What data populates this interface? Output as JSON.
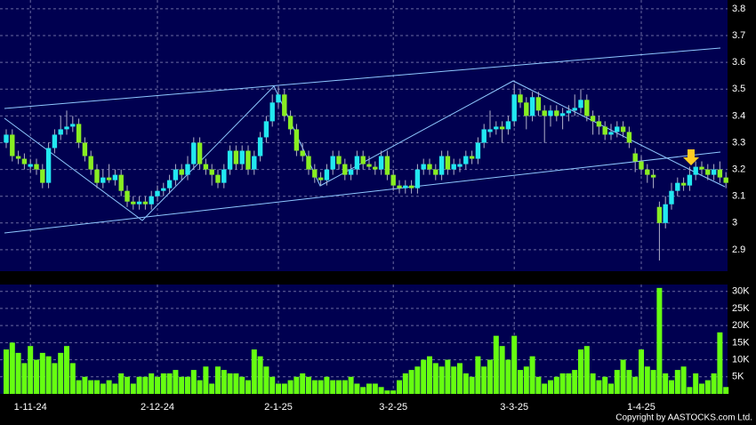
{
  "chart_data": {
    "type": "candlestick",
    "categories": [
      null,
      null,
      null,
      null,
      "1-11-24",
      null,
      null,
      null,
      null,
      null,
      null,
      null,
      null,
      null,
      null,
      null,
      null,
      null,
      null,
      null,
      null,
      null,
      null,
      null,
      null,
      "2-12-24",
      null,
      null,
      null,
      null,
      null,
      null,
      null,
      null,
      null,
      null,
      null,
      null,
      null,
      null,
      null,
      null,
      null,
      null,
      null,
      "2-1-25",
      null,
      null,
      null,
      null,
      null,
      null,
      null,
      null,
      null,
      null,
      null,
      null,
      null,
      null,
      null,
      null,
      null,
      null,
      "3-2-25",
      null,
      null,
      null,
      null,
      null,
      null,
      null,
      null,
      null,
      null,
      null,
      null,
      null,
      null,
      null,
      null,
      null,
      null,
      null,
      "3-3-25",
      null,
      null,
      null,
      null,
      null,
      null,
      null,
      null,
      null,
      null,
      null,
      null,
      null,
      null,
      null,
      null,
      null,
      null,
      null,
      null,
      "1-4-25",
      null,
      null,
      null,
      null,
      null,
      null,
      null,
      null,
      null,
      null,
      null,
      null,
      null,
      null
    ],
    "ohlc": [
      [
        3.3,
        3.35,
        3.28,
        3.33
      ],
      [
        3.33,
        3.35,
        3.23,
        3.25
      ],
      [
        3.25,
        3.27,
        3.22,
        3.24
      ],
      [
        3.24,
        3.26,
        3.2,
        3.22
      ],
      [
        3.21,
        3.24,
        3.19,
        3.22
      ],
      [
        3.22,
        3.24,
        3.18,
        3.2
      ],
      [
        3.2,
        3.22,
        3.13,
        3.15
      ],
      [
        3.15,
        3.3,
        3.13,
        3.28
      ],
      [
        3.28,
        3.35,
        3.26,
        3.33
      ],
      [
        3.33,
        3.4,
        3.31,
        3.35
      ],
      [
        3.35,
        3.42,
        3.33,
        3.36
      ],
      [
        3.36,
        3.4,
        3.34,
        3.37
      ],
      [
        3.37,
        3.39,
        3.28,
        3.3
      ],
      [
        3.3,
        3.32,
        3.23,
        3.25
      ],
      [
        3.25,
        3.27,
        3.18,
        3.2
      ],
      [
        3.2,
        3.22,
        3.13,
        3.15
      ],
      [
        3.15,
        3.2,
        3.13,
        3.17
      ],
      [
        3.17,
        3.22,
        3.15,
        3.16
      ],
      [
        3.16,
        3.2,
        3.14,
        3.18
      ],
      [
        3.18,
        3.2,
        3.1,
        3.12
      ],
      [
        3.12,
        3.14,
        3.06,
        3.08
      ],
      [
        3.08,
        3.1,
        3.05,
        3.07
      ],
      [
        3.07,
        3.1,
        3.05,
        3.08
      ],
      [
        3.08,
        3.1,
        3.05,
        3.07
      ],
      [
        3.07,
        3.12,
        3.05,
        3.1
      ],
      [
        3.1,
        3.14,
        3.08,
        3.12
      ],
      [
        3.12,
        3.15,
        3.1,
        3.13
      ],
      [
        3.13,
        3.18,
        3.11,
        3.16
      ],
      [
        3.16,
        3.22,
        3.14,
        3.2
      ],
      [
        3.2,
        3.22,
        3.16,
        3.18
      ],
      [
        3.18,
        3.25,
        3.16,
        3.22
      ],
      [
        3.22,
        3.32,
        3.2,
        3.3
      ],
      [
        3.3,
        3.32,
        3.2,
        3.22
      ],
      [
        3.22,
        3.24,
        3.18,
        3.2
      ],
      [
        3.2,
        3.22,
        3.14,
        3.18
      ],
      [
        3.18,
        3.2,
        3.13,
        3.15
      ],
      [
        3.15,
        3.22,
        3.13,
        3.2
      ],
      [
        3.2,
        3.29,
        3.18,
        3.27
      ],
      [
        3.27,
        3.29,
        3.2,
        3.22
      ],
      [
        3.22,
        3.29,
        3.2,
        3.27
      ],
      [
        3.27,
        3.29,
        3.18,
        3.2
      ],
      [
        3.2,
        3.27,
        3.18,
        3.25
      ],
      [
        3.25,
        3.34,
        3.23,
        3.32
      ],
      [
        3.32,
        3.4,
        3.3,
        3.38
      ],
      [
        3.38,
        3.48,
        3.36,
        3.45
      ],
      [
        3.45,
        3.51,
        3.43,
        3.48
      ],
      [
        3.48,
        3.5,
        3.38,
        3.4
      ],
      [
        3.4,
        3.42,
        3.33,
        3.35
      ],
      [
        3.35,
        3.37,
        3.25,
        3.27
      ],
      [
        3.27,
        3.3,
        3.23,
        3.25
      ],
      [
        3.25,
        3.27,
        3.18,
        3.2
      ],
      [
        3.2,
        3.22,
        3.15,
        3.17
      ],
      [
        3.17,
        3.19,
        3.14,
        3.16
      ],
      [
        3.16,
        3.22,
        3.14,
        3.2
      ],
      [
        3.2,
        3.27,
        3.18,
        3.25
      ],
      [
        3.25,
        3.27,
        3.2,
        3.22
      ],
      [
        3.22,
        3.24,
        3.16,
        3.18
      ],
      [
        3.18,
        3.22,
        3.16,
        3.2
      ],
      [
        3.2,
        3.27,
        3.18,
        3.25
      ],
      [
        3.25,
        3.27,
        3.2,
        3.22
      ],
      [
        3.22,
        3.25,
        3.2,
        3.21
      ],
      [
        3.21,
        3.23,
        3.18,
        3.2
      ],
      [
        3.2,
        3.27,
        3.18,
        3.25
      ],
      [
        3.25,
        3.27,
        3.16,
        3.18
      ],
      [
        3.18,
        3.2,
        3.12,
        3.14
      ],
      [
        3.14,
        3.16,
        3.11,
        3.13
      ],
      [
        3.13,
        3.16,
        3.11,
        3.14
      ],
      [
        3.14,
        3.16,
        3.11,
        3.13
      ],
      [
        3.13,
        3.22,
        3.11,
        3.2
      ],
      [
        3.2,
        3.24,
        3.18,
        3.22
      ],
      [
        3.22,
        3.24,
        3.18,
        3.2
      ],
      [
        3.2,
        3.22,
        3.16,
        3.18
      ],
      [
        3.18,
        3.27,
        3.16,
        3.25
      ],
      [
        3.25,
        3.27,
        3.18,
        3.2
      ],
      [
        3.2,
        3.24,
        3.18,
        3.22
      ],
      [
        3.21,
        3.24,
        3.19,
        3.22
      ],
      [
        3.22,
        3.27,
        3.2,
        3.25
      ],
      [
        3.25,
        3.27,
        3.22,
        3.24
      ],
      [
        3.24,
        3.32,
        3.22,
        3.3
      ],
      [
        3.3,
        3.37,
        3.28,
        3.35
      ],
      [
        3.34,
        3.42,
        3.32,
        3.35
      ],
      [
        3.35,
        3.38,
        3.33,
        3.36
      ],
      [
        3.36,
        3.38,
        3.3,
        3.35
      ],
      [
        3.35,
        3.4,
        3.33,
        3.38
      ],
      [
        3.38,
        3.52,
        3.36,
        3.48
      ],
      [
        3.48,
        3.5,
        3.43,
        3.45
      ],
      [
        3.45,
        3.47,
        3.35,
        3.4
      ],
      [
        3.4,
        3.49,
        3.38,
        3.47
      ],
      [
        3.47,
        3.49,
        3.4,
        3.42
      ],
      [
        3.42,
        3.44,
        3.3,
        3.4
      ],
      [
        3.4,
        3.44,
        3.36,
        3.42
      ],
      [
        3.42,
        3.44,
        3.38,
        3.4
      ],
      [
        3.4,
        3.43,
        3.35,
        3.41
      ],
      [
        3.41,
        3.44,
        3.38,
        3.42
      ],
      [
        3.42,
        3.48,
        3.4,
        3.43
      ],
      [
        3.43,
        3.5,
        3.41,
        3.46
      ],
      [
        3.46,
        3.48,
        3.38,
        3.4
      ],
      [
        3.4,
        3.42,
        3.33,
        3.38
      ],
      [
        3.38,
        3.4,
        3.33,
        3.36
      ],
      [
        3.36,
        3.38,
        3.31,
        3.33
      ],
      [
        3.33,
        3.37,
        3.31,
        3.34
      ],
      [
        3.34,
        3.38,
        3.32,
        3.36
      ],
      [
        3.36,
        3.38,
        3.32,
        3.34
      ],
      [
        3.34,
        3.36,
        3.28,
        3.3
      ],
      [
        3.26,
        3.28,
        3.19,
        3.23
      ],
      [
        3.23,
        3.25,
        3.18,
        3.2
      ],
      [
        3.2,
        3.22,
        3.15,
        3.18
      ],
      [
        3.18,
        3.2,
        3.13,
        3.17
      ],
      [
        3.06,
        3.08,
        2.86,
        3.0
      ],
      [
        3.0,
        3.1,
        2.98,
        3.07
      ],
      [
        3.07,
        3.15,
        3.05,
        3.12
      ],
      [
        3.12,
        3.17,
        3.1,
        3.15
      ],
      [
        3.15,
        3.17,
        3.12,
        3.14
      ],
      [
        3.14,
        3.21,
        3.12,
        3.18
      ],
      [
        3.18,
        3.23,
        3.16,
        3.21
      ],
      [
        3.21,
        3.23,
        3.18,
        3.2
      ],
      [
        3.2,
        3.22,
        3.16,
        3.18
      ],
      [
        3.18,
        3.22,
        3.16,
        3.2
      ],
      [
        3.2,
        3.23,
        3.15,
        3.17
      ],
      [
        3.17,
        3.19,
        3.13,
        3.15
      ]
    ],
    "up_color": "#22e8f0",
    "down_color": "#88ee22",
    "ylim": [
      2.82,
      3.833
    ],
    "yticks": [
      2.9,
      3,
      3.1,
      3.2,
      3.3,
      3.4,
      3.5,
      3.6,
      3.7,
      3.8
    ],
    "volume": [
      13,
      15,
      12,
      9,
      14,
      10,
      12,
      11,
      9,
      12,
      14,
      9,
      4,
      5,
      4,
      4,
      3,
      4,
      3,
      6,
      5,
      3,
      5,
      5,
      6,
      5,
      6,
      6,
      7,
      5,
      5,
      7,
      4,
      8,
      3,
      8,
      7,
      6,
      6,
      5,
      4,
      13,
      11,
      8,
      5,
      3,
      3,
      4,
      5,
      6,
      5,
      4,
      4,
      5,
      4,
      4,
      4,
      5,
      3,
      2,
      3,
      3,
      2,
      1,
      1,
      4,
      6,
      7,
      8,
      10,
      11,
      9,
      8,
      10,
      8,
      9,
      6,
      5,
      11,
      8,
      10,
      17,
      14,
      10,
      17,
      7,
      8,
      11,
      5,
      3,
      4,
      5,
      6,
      6,
      7,
      13,
      14,
      6,
      4,
      5,
      3,
      7,
      10,
      7,
      5,
      13,
      8,
      7,
      31,
      6,
      4,
      7,
      8,
      2,
      6,
      3,
      4,
      6,
      18,
      2
    ],
    "volume_color": "#66ff11",
    "volume_ylim": [
      0,
      32
    ],
    "volume_yticks": [
      {
        "value": 5,
        "label": "5K"
      },
      {
        "value": 10,
        "label": "10K"
      },
      {
        "value": 15,
        "label": "15K"
      },
      {
        "value": 20,
        "label": "20K"
      },
      {
        "value": 25,
        "label": "25K"
      },
      {
        "value": 30,
        "label": "30K"
      }
    ],
    "grid": true,
    "copyright": "Copyright by AASTOCKS.com Ltd."
  }
}
